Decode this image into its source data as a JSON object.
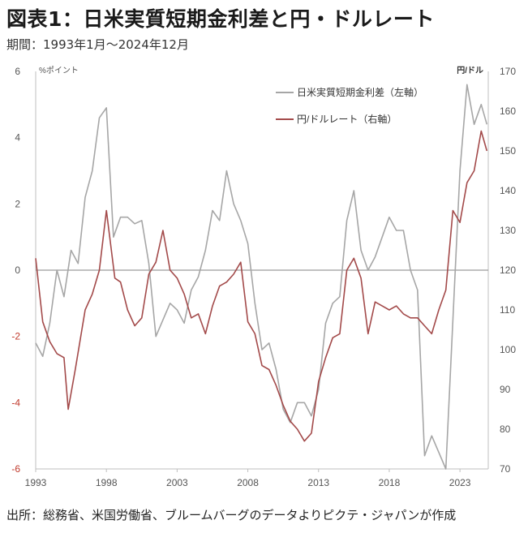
{
  "title": "図表1：日米実質短期金利差と円・ドルレート",
  "subtitle": "期間：1993年1月～2024年12月",
  "source": "出所：総務省、米国労働省、ブルームバーグのデータよりピクテ・ジャパンが作成",
  "chart_data": {
    "type": "line",
    "left_axis": {
      "unit": "%ポイント",
      "ticks": [
        "6",
        "4",
        "2",
        "0",
        "-2",
        "-4",
        "-6"
      ],
      "range": [
        -6,
        6
      ]
    },
    "right_axis": {
      "unit": "円/ドル",
      "ticks": [
        "170",
        "160",
        "150",
        "140",
        "130",
        "120",
        "110",
        "100",
        "90",
        "80",
        "70"
      ],
      "range": [
        70,
        170
      ]
    },
    "x_ticks": [
      "1993",
      "1998",
      "2003",
      "2008",
      "2013",
      "2018",
      "2023"
    ],
    "x_range": [
      1993,
      2025
    ],
    "reference_line": 0,
    "legend_position": "top-right",
    "series": [
      {
        "name": "日米実質短期金利差（左軸）",
        "axis": "left",
        "color": "#a6a6a6",
        "x": [
          1993.0,
          1993.5,
          1994.0,
          1994.5,
          1995.0,
          1995.5,
          1996.0,
          1996.5,
          1997.0,
          1997.5,
          1998.0,
          1998.5,
          1999.0,
          1999.5,
          2000.0,
          2000.5,
          2001.0,
          2001.5,
          2002.0,
          2002.5,
          2003.0,
          2003.5,
          2004.0,
          2004.5,
          2005.0,
          2005.5,
          2006.0,
          2006.5,
          2007.0,
          2007.5,
          2008.0,
          2008.5,
          2009.0,
          2009.5,
          2010.0,
          2010.5,
          2011.0,
          2011.5,
          2012.0,
          2012.5,
          2013.0,
          2013.5,
          2014.0,
          2014.5,
          2015.0,
          2015.5,
          2016.0,
          2016.5,
          2017.0,
          2017.5,
          2018.0,
          2018.5,
          2019.0,
          2019.5,
          2020.0,
          2020.5,
          2021.0,
          2021.5,
          2022.0,
          2022.5,
          2023.0,
          2023.5,
          2024.0,
          2024.5,
          2024.9
        ],
        "values": [
          -2.2,
          -2.6,
          -1.6,
          0.0,
          -0.8,
          0.6,
          0.2,
          2.2,
          3.0,
          4.6,
          4.9,
          1.0,
          1.6,
          1.6,
          1.4,
          1.5,
          0.2,
          -2.0,
          -1.5,
          -1.0,
          -1.2,
          -1.6,
          -0.6,
          -0.2,
          0.6,
          1.8,
          1.5,
          3.0,
          2.0,
          1.5,
          0.8,
          -1.0,
          -2.4,
          -2.2,
          -3.0,
          -4.2,
          -4.6,
          -4.0,
          -4.0,
          -4.4,
          -3.6,
          -1.6,
          -1.0,
          -0.8,
          1.5,
          2.4,
          0.6,
          0.0,
          0.4,
          1.0,
          1.6,
          1.2,
          1.2,
          0.0,
          -0.6,
          -5.6,
          -5.0,
          -5.5,
          -6.2,
          -1.5,
          3.0,
          5.6,
          4.4,
          5.0,
          4.4
        ]
      },
      {
        "name": "円/ドルレート（右軸）",
        "axis": "right",
        "color": "#a34a4a",
        "x": [
          1993.0,
          1993.5,
          1994.0,
          1994.5,
          1995.0,
          1995.3,
          1995.8,
          1996.5,
          1997.0,
          1997.5,
          1998.0,
          1998.6,
          1999.0,
          1999.5,
          2000.0,
          2000.5,
          2001.0,
          2001.5,
          2002.0,
          2002.5,
          2003.0,
          2003.5,
          2004.0,
          2004.5,
          2005.0,
          2005.5,
          2006.0,
          2006.5,
          2007.0,
          2007.5,
          2008.0,
          2008.5,
          2009.0,
          2009.5,
          2010.0,
          2010.5,
          2011.0,
          2011.5,
          2012.0,
          2012.5,
          2013.0,
          2013.5,
          2014.0,
          2014.5,
          2015.0,
          2015.5,
          2016.0,
          2016.5,
          2017.0,
          2017.5,
          2018.0,
          2018.5,
          2019.0,
          2019.5,
          2020.0,
          2020.5,
          2021.0,
          2021.5,
          2022.0,
          2022.5,
          2023.0,
          2023.5,
          2024.0,
          2024.5,
          2024.9
        ],
        "values": [
          123,
          107,
          102,
          99,
          98,
          85,
          95,
          110,
          114,
          120,
          135,
          118,
          117,
          110,
          106,
          108,
          119,
          122,
          130,
          120,
          118,
          114,
          108,
          109,
          104,
          111,
          116,
          117,
          119,
          122,
          107,
          104,
          96,
          95,
          91,
          86,
          82,
          80,
          77,
          79,
          92,
          98,
          103,
          104,
          120,
          123,
          118,
          104,
          112,
          111,
          110,
          111,
          109,
          108,
          108,
          106,
          104,
          110,
          115,
          135,
          132,
          142,
          145,
          155,
          150
        ]
      }
    ]
  }
}
